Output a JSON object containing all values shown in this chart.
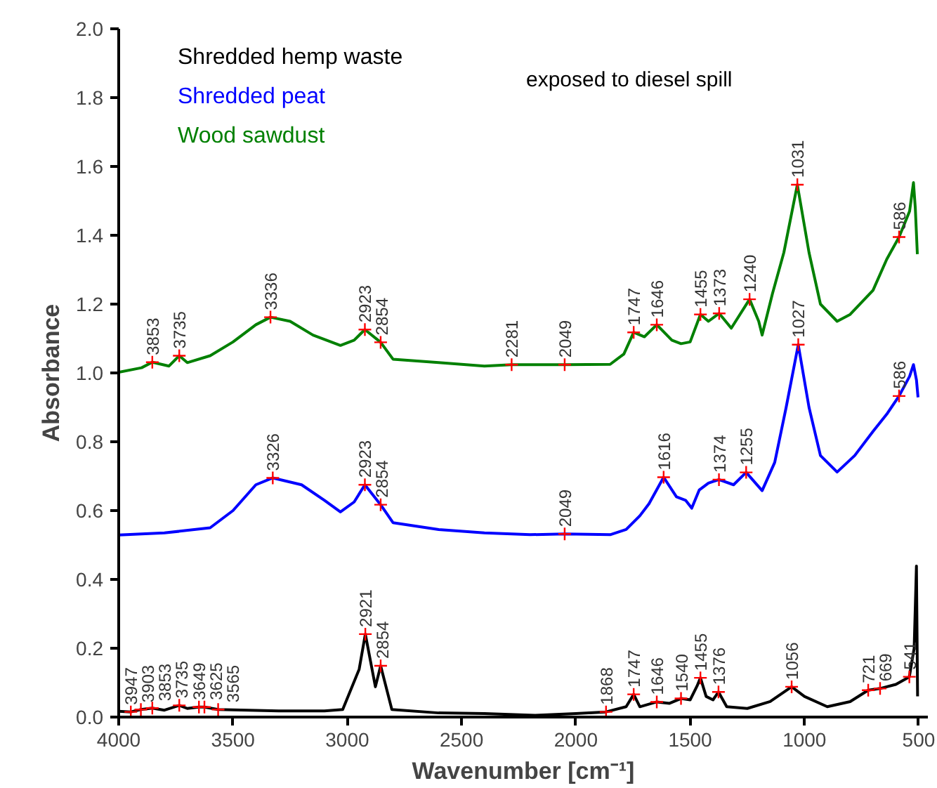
{
  "chart_data": {
    "type": "line",
    "xlabel": "Wavenumber [cm⁻¹]",
    "ylabel": "Absorbance",
    "xlim": [
      4000,
      460
    ],
    "ylim": [
      0,
      2.0
    ],
    "xticks": [
      4000,
      3500,
      3000,
      2500,
      2000,
      1500,
      1000,
      500
    ],
    "yticks": [
      {
        "value": 0,
        "label": "0.0"
      },
      {
        "value": 0.2,
        "label": "0.2"
      },
      {
        "value": 0.4,
        "label": "0.4"
      },
      {
        "value": 0.6,
        "label": "0.6"
      },
      {
        "value": 0.8,
        "label": "0.8"
      },
      {
        "value": 1.0,
        "label": "1.0"
      },
      {
        "value": 1.2,
        "label": "1.2"
      },
      {
        "value": 1.4,
        "label": "1.4"
      },
      {
        "value": 1.6,
        "label": "1.6"
      },
      {
        "value": 1.8,
        "label": "1.8"
      },
      {
        "value": 2.0,
        "label": "2.0"
      }
    ],
    "grid": false,
    "legend": "top left",
    "marker": "none",
    "line_style": "solid",
    "series": [
      {
        "name": "Shredded hemp waste",
        "color": "#000000",
        "x": [
          4000,
          3947,
          3903,
          3853,
          3800,
          3735,
          3700,
          3649,
          3625,
          3565,
          3300,
          3100,
          3020,
          2948,
          2921,
          2877,
          2854,
          2805,
          2600,
          2400,
          2180,
          2000,
          1868,
          1780,
          1747,
          1720,
          1646,
          1590,
          1540,
          1500,
          1470,
          1455,
          1430,
          1400,
          1376,
          1340,
          1250,
          1150,
          1056,
          1000,
          900,
          800,
          721,
          669,
          600,
          541,
          520,
          510,
          505
        ],
        "values": [
          0.017,
          0.015,
          0.022,
          0.026,
          0.02,
          0.034,
          0.025,
          0.029,
          0.029,
          0.022,
          0.018,
          0.018,
          0.022,
          0.139,
          0.241,
          0.088,
          0.149,
          0.022,
          0.012,
          0.01,
          0.005,
          0.01,
          0.015,
          0.03,
          0.066,
          0.03,
          0.044,
          0.04,
          0.054,
          0.05,
          0.09,
          0.114,
          0.06,
          0.05,
          0.073,
          0.03,
          0.025,
          0.045,
          0.088,
          0.06,
          0.03,
          0.045,
          0.078,
          0.083,
          0.095,
          0.117,
          0.2,
          0.439,
          0.06
        ]
      },
      {
        "name": "Shredded peat",
        "color": "#0000ff",
        "x": [
          4000,
          3800,
          3600,
          3500,
          3400,
          3326,
          3200,
          3100,
          3030,
          2970,
          2923,
          2854,
          2800,
          2600,
          2400,
          2200,
          2049,
          1850,
          1780,
          1720,
          1680,
          1616,
          1560,
          1520,
          1493,
          1460,
          1420,
          1374,
          1310,
          1255,
          1185,
          1130,
          1080,
          1027,
          980,
          930,
          857,
          780,
          700,
          640,
          586,
          540,
          523,
          510,
          503
        ],
        "values": [
          0.529,
          0.535,
          0.55,
          0.6,
          0.675,
          0.695,
          0.675,
          0.63,
          0.596,
          0.625,
          0.675,
          0.617,
          0.565,
          0.545,
          0.535,
          0.53,
          0.532,
          0.53,
          0.545,
          0.585,
          0.62,
          0.697,
          0.64,
          0.63,
          0.607,
          0.66,
          0.68,
          0.69,
          0.675,
          0.711,
          0.658,
          0.74,
          0.9,
          1.082,
          0.9,
          0.76,
          0.712,
          0.76,
          0.83,
          0.88,
          0.933,
          0.99,
          1.024,
          0.98,
          0.929
        ]
      },
      {
        "name": "Wood sawdust",
        "color": "#008000",
        "x": [
          4000,
          3900,
          3853,
          3780,
          3735,
          3700,
          3600,
          3500,
          3400,
          3336,
          3250,
          3150,
          3030,
          2970,
          2923,
          2854,
          2800,
          2600,
          2400,
          2281,
          2049,
          1850,
          1790,
          1747,
          1700,
          1646,
          1580,
          1540,
          1500,
          1455,
          1420,
          1373,
          1320,
          1240,
          1200,
          1185,
          1140,
          1090,
          1031,
          980,
          930,
          857,
          800,
          700,
          640,
          586,
          540,
          523,
          515,
          506
        ],
        "values": [
          1.002,
          1.015,
          1.031,
          1.02,
          1.05,
          1.03,
          1.05,
          1.09,
          1.14,
          1.162,
          1.15,
          1.11,
          1.08,
          1.095,
          1.126,
          1.089,
          1.04,
          1.03,
          1.02,
          1.024,
          1.024,
          1.025,
          1.055,
          1.118,
          1.105,
          1.14,
          1.095,
          1.085,
          1.09,
          1.17,
          1.15,
          1.173,
          1.13,
          1.214,
          1.15,
          1.11,
          1.23,
          1.35,
          1.547,
          1.35,
          1.2,
          1.15,
          1.17,
          1.24,
          1.33,
          1.395,
          1.47,
          1.553,
          1.48,
          1.345
        ]
      }
    ],
    "annotations": [
      "exposed to diesel spill",
      {
        "text": "3853",
        "x": 3853,
        "y": 1.031
      },
      {
        "text": "3735",
        "x": 3735,
        "y": 1.05
      },
      {
        "text": "3336",
        "x": 3336,
        "y": 1.162
      },
      {
        "text": "2923",
        "x": 2923,
        "y": 1.126
      },
      {
        "text": "2854",
        "x": 2854,
        "y": 1.089
      },
      {
        "text": "2281",
        "x": 2281,
        "y": 1.024
      },
      {
        "text": "2049",
        "x": 2049,
        "y": 1.024
      },
      {
        "text": "1747",
        "x": 1747,
        "y": 1.118
      },
      {
        "text": "1646",
        "x": 1646,
        "y": 1.14
      },
      {
        "text": "1455",
        "x": 1455,
        "y": 1.17
      },
      {
        "text": "1373",
        "x": 1373,
        "y": 1.173
      },
      {
        "text": "1240",
        "x": 1240,
        "y": 1.214
      },
      {
        "text": "1031",
        "x": 1031,
        "y": 1.547
      },
      {
        "text": "586",
        "x": 586,
        "y": 1.395
      },
      {
        "text": "3326",
        "x": 3326,
        "y": 0.695
      },
      {
        "text": "2923",
        "x": 2923,
        "y": 0.675
      },
      {
        "text": "2854",
        "x": 2854,
        "y": 0.617
      },
      {
        "text": "2049",
        "x": 2049,
        "y": 0.532
      },
      {
        "text": "1616",
        "x": 1616,
        "y": 0.697
      },
      {
        "text": "1374",
        "x": 1374,
        "y": 0.69
      },
      {
        "text": "1255",
        "x": 1255,
        "y": 0.711
      },
      {
        "text": "1027",
        "x": 1027,
        "y": 1.082
      },
      {
        "text": "586",
        "x": 586,
        "y": 0.933
      },
      {
        "text": "3947",
        "x": 3947,
        "y": 0.015
      },
      {
        "text": "3903",
        "x": 3903,
        "y": 0.022
      },
      {
        "text": "3853",
        "x": 3853,
        "y": 0.026
      },
      {
        "text": "3735",
        "x": 3735,
        "y": 0.034
      },
      {
        "text": "3649",
        "x": 3649,
        "y": 0.029
      },
      {
        "text": "3625",
        "x": 3625,
        "y": 0.029
      },
      {
        "text": "3565",
        "x": 3565,
        "y": 0.022
      },
      {
        "text": "2921",
        "x": 2921,
        "y": 0.241
      },
      {
        "text": "2854",
        "x": 2854,
        "y": 0.149
      },
      {
        "text": "1868",
        "x": 1868,
        "y": 0.015
      },
      {
        "text": "1747",
        "x": 1747,
        "y": 0.066
      },
      {
        "text": "1646",
        "x": 1646,
        "y": 0.044
      },
      {
        "text": "1540",
        "x": 1540,
        "y": 0.054
      },
      {
        "text": "1455",
        "x": 1455,
        "y": 0.114
      },
      {
        "text": "1376",
        "x": 1376,
        "y": 0.073
      },
      {
        "text": "1056",
        "x": 1056,
        "y": 0.088
      },
      {
        "text": "721",
        "x": 721,
        "y": 0.078
      },
      {
        "text": "669",
        "x": 669,
        "y": 0.083
      },
      {
        "text": "541",
        "x": 541,
        "y": 0.117
      }
    ]
  }
}
